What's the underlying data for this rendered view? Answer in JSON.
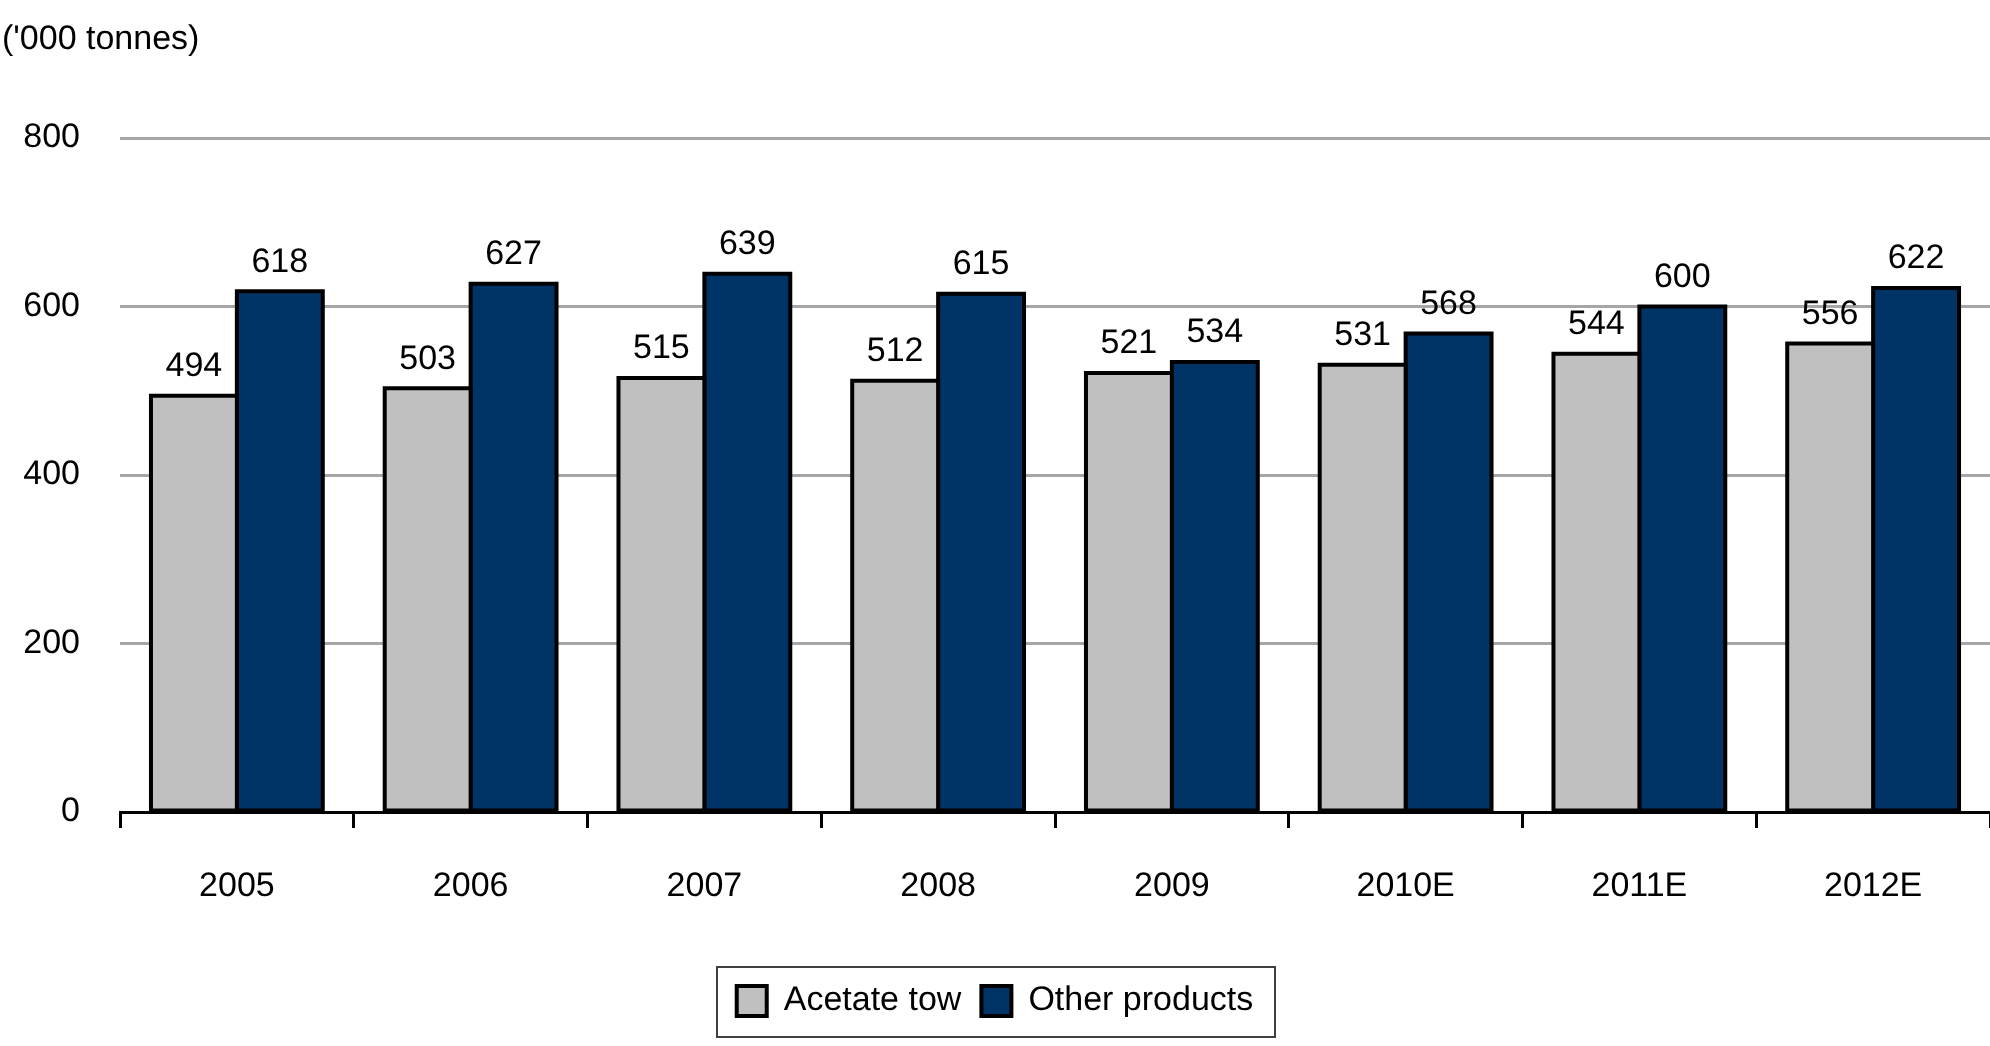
{
  "chart_data": {
    "type": "bar",
    "ylabel": "('000 tonnes)",
    "categories": [
      "2005",
      "2006",
      "2007",
      "2008",
      "2009",
      "2010E",
      "2011E",
      "2012E"
    ],
    "series": [
      {
        "name": "Acetate tow",
        "color": "#c0c0c0",
        "values": [
          494,
          503,
          515,
          512,
          521,
          531,
          544,
          556
        ]
      },
      {
        "name": "Other products",
        "color": "#003366",
        "values": [
          618,
          627,
          639,
          615,
          534,
          568,
          600,
          622
        ]
      }
    ],
    "ylim": [
      0,
      800
    ],
    "yticks": [
      0,
      200,
      400,
      600,
      800
    ],
    "grid": "y",
    "legend": "bottom",
    "data_labels": true
  }
}
